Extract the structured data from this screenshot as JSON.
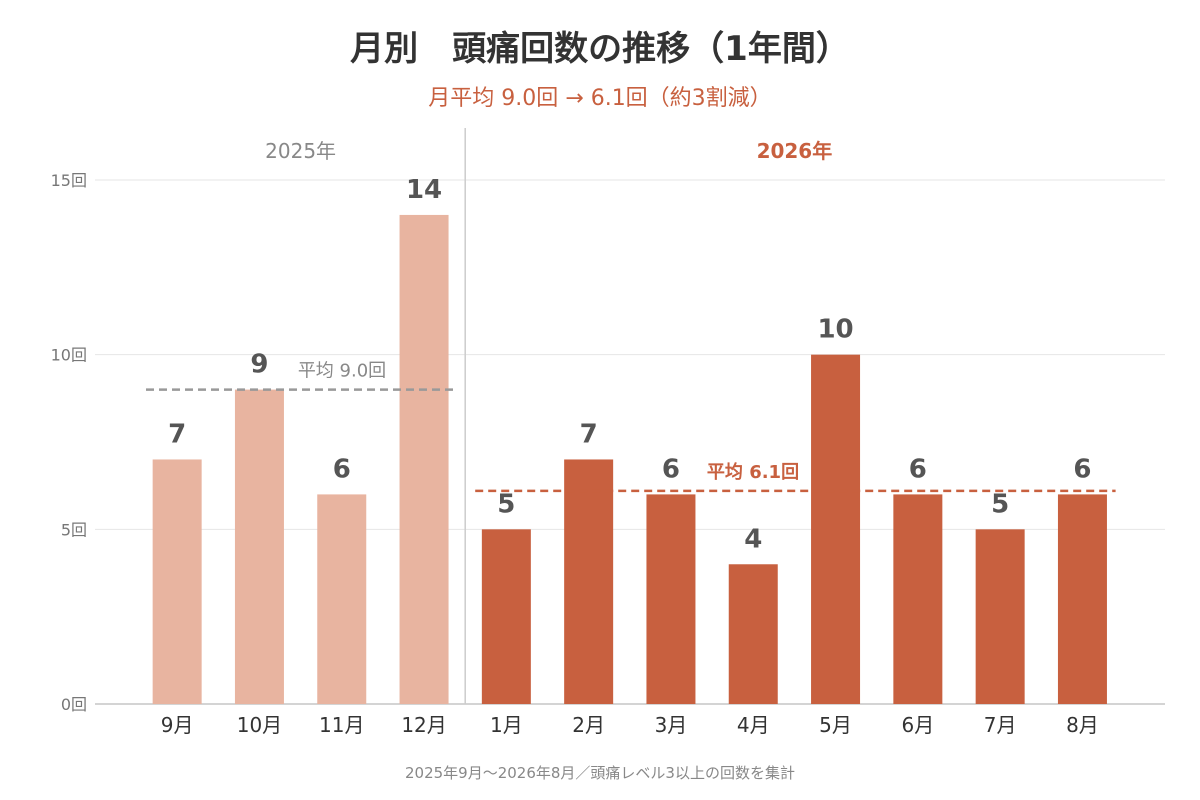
{
  "chart_data": {
    "type": "bar",
    "title": "月別　頭痛回数の推移（1年間）",
    "subtitle": "月平均 9.0回 → 6.1回（約3割減）",
    "ylim": [
      0,
      15
    ],
    "yticks": [
      0,
      5,
      10,
      15
    ],
    "ytick_labels": [
      "0回",
      "5回",
      "10回",
      "15回"
    ],
    "grid": true,
    "groups": [
      {
        "label": "2025年",
        "color": "#E8B4A0",
        "average_color": "#999999",
        "categories": [
          "9月",
          "10月",
          "11月",
          "12月"
        ],
        "values": [
          7,
          9,
          6,
          14
        ],
        "average": 9.0,
        "average_label": "平均 9.0回"
      },
      {
        "label": "2026年",
        "color": "#C8603F",
        "average_color": "#C8603F",
        "categories": [
          "1月",
          "2月",
          "3月",
          "4月",
          "5月",
          "6月",
          "7月",
          "8月"
        ],
        "values": [
          5,
          7,
          6,
          4,
          10,
          6,
          5,
          6
        ],
        "average": 6.1,
        "average_label": "平均 6.1回"
      }
    ],
    "footnote": "2025年9月〜2026年8月／頭痛レベル3以上の回数を集計"
  }
}
